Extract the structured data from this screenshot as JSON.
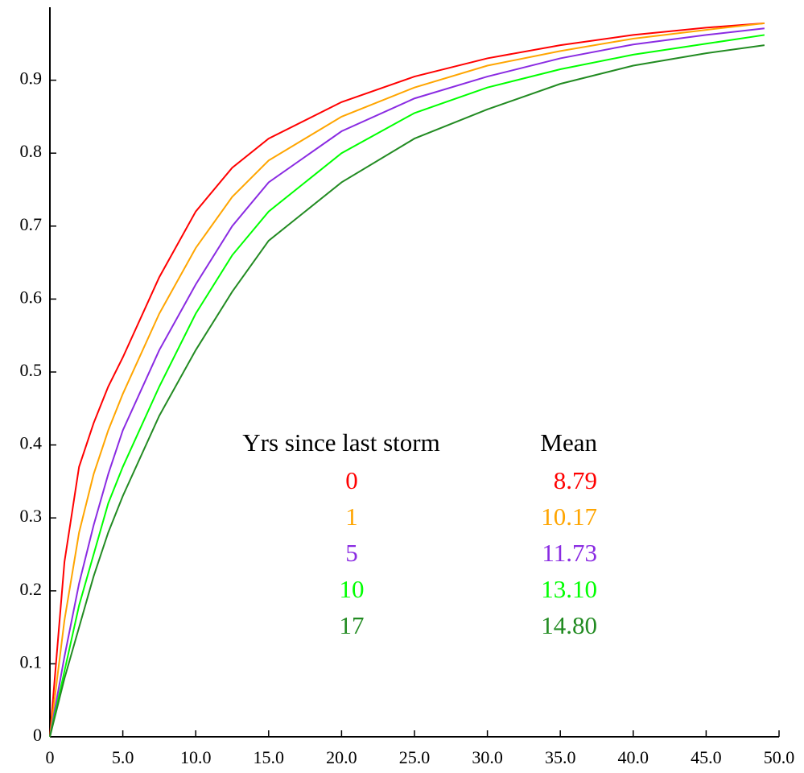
{
  "chart_data": {
    "type": "line",
    "x": [
      0,
      1,
      2,
      3,
      4,
      5,
      7.5,
      10,
      12.5,
      15,
      20,
      25,
      30,
      35,
      40,
      45,
      49
    ],
    "series": [
      {
        "name": "0",
        "mean": "8.79",
        "color": "#ff0000",
        "values": [
          0,
          0.24,
          0.37,
          0.43,
          0.48,
          0.52,
          0.63,
          0.72,
          0.78,
          0.82,
          0.87,
          0.905,
          0.93,
          0.948,
          0.962,
          0.972,
          0.978
        ]
      },
      {
        "name": "1",
        "mean": "10.17",
        "color": "#ffa500",
        "values": [
          0,
          0.16,
          0.28,
          0.36,
          0.42,
          0.47,
          0.58,
          0.67,
          0.74,
          0.79,
          0.85,
          0.89,
          0.92,
          0.94,
          0.957,
          0.969,
          0.978
        ]
      },
      {
        "name": "5",
        "mean": "11.73",
        "color": "#8a2be2",
        "values": [
          0,
          0.11,
          0.21,
          0.29,
          0.36,
          0.42,
          0.53,
          0.62,
          0.7,
          0.76,
          0.83,
          0.875,
          0.905,
          0.93,
          0.949,
          0.962,
          0.971
        ]
      },
      {
        "name": "10",
        "mean": "13.10",
        "color": "#00ff00",
        "values": [
          0,
          0.09,
          0.18,
          0.25,
          0.32,
          0.37,
          0.48,
          0.58,
          0.66,
          0.72,
          0.8,
          0.855,
          0.89,
          0.915,
          0.935,
          0.95,
          0.962
        ]
      },
      {
        "name": "17",
        "mean": "14.80",
        "color": "#228b22",
        "values": [
          0,
          0.08,
          0.15,
          0.22,
          0.28,
          0.33,
          0.44,
          0.53,
          0.61,
          0.68,
          0.76,
          0.82,
          0.86,
          0.895,
          0.92,
          0.937,
          0.948
        ]
      }
    ],
    "legend_title": "Yrs since last storm",
    "legend_value_title": "Mean",
    "xlim": [
      0,
      50
    ],
    "ylim": [
      0,
      1
    ],
    "xticks": [
      0,
      {
        "value": 5,
        "label": "5.0"
      },
      {
        "value": 10,
        "label": "10.0"
      },
      {
        "value": 15,
        "label": "15.0"
      },
      {
        "value": 20,
        "label": "20.0"
      },
      {
        "value": 25,
        "label": "25.0"
      },
      {
        "value": 30,
        "label": "30.0"
      },
      {
        "value": 35,
        "label": "35.0"
      },
      {
        "value": 40,
        "label": "40.0"
      },
      {
        "value": 45,
        "label": "45.0"
      },
      {
        "value": 50,
        "label": "50.0"
      }
    ],
    "yticks": [
      0,
      0.1,
      0.2,
      0.3,
      0.4,
      0.5,
      0.6,
      0.7,
      0.8,
      0.9
    ]
  }
}
